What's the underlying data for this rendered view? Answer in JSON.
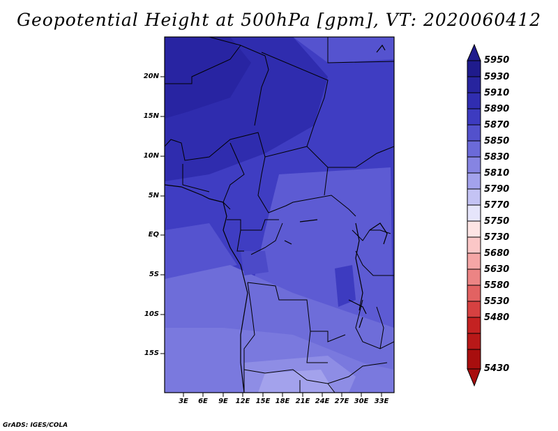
{
  "title": "Geopotential Height at 500hPa [gpm], VT: 2020060412",
  "footer": "GrADS: IGES/COLA",
  "map": {
    "lat_ticks": [
      "20N",
      "15N",
      "10N",
      "5N",
      "EQ",
      "5S",
      "10S",
      "15S"
    ],
    "lon_ticks": [
      "3E",
      "6E",
      "9E",
      "12E",
      "15E",
      "18E",
      "21E",
      "24E",
      "27E",
      "30E",
      "33E"
    ]
  },
  "colorbar": {
    "labels": [
      "5950",
      "5930",
      "5910",
      "5890",
      "5870",
      "5850",
      "5830",
      "5810",
      "5790",
      "5770",
      "5750",
      "5730",
      "5680",
      "5630",
      "5580",
      "5530",
      "5480",
      "5430"
    ],
    "colors": [
      "#1f1b8c",
      "#27249e",
      "#302db0",
      "#3d3bc0",
      "#5351cc",
      "#6b6ad8",
      "#8684e2",
      "#a3a2ec",
      "#c4c3f4",
      "#e6e5fb",
      "#fde4e4",
      "#fbc7c7",
      "#f5a6a6",
      "#ec8484",
      "#e26262",
      "#d64141",
      "#c42222",
      "#a80e0e"
    ]
  }
}
